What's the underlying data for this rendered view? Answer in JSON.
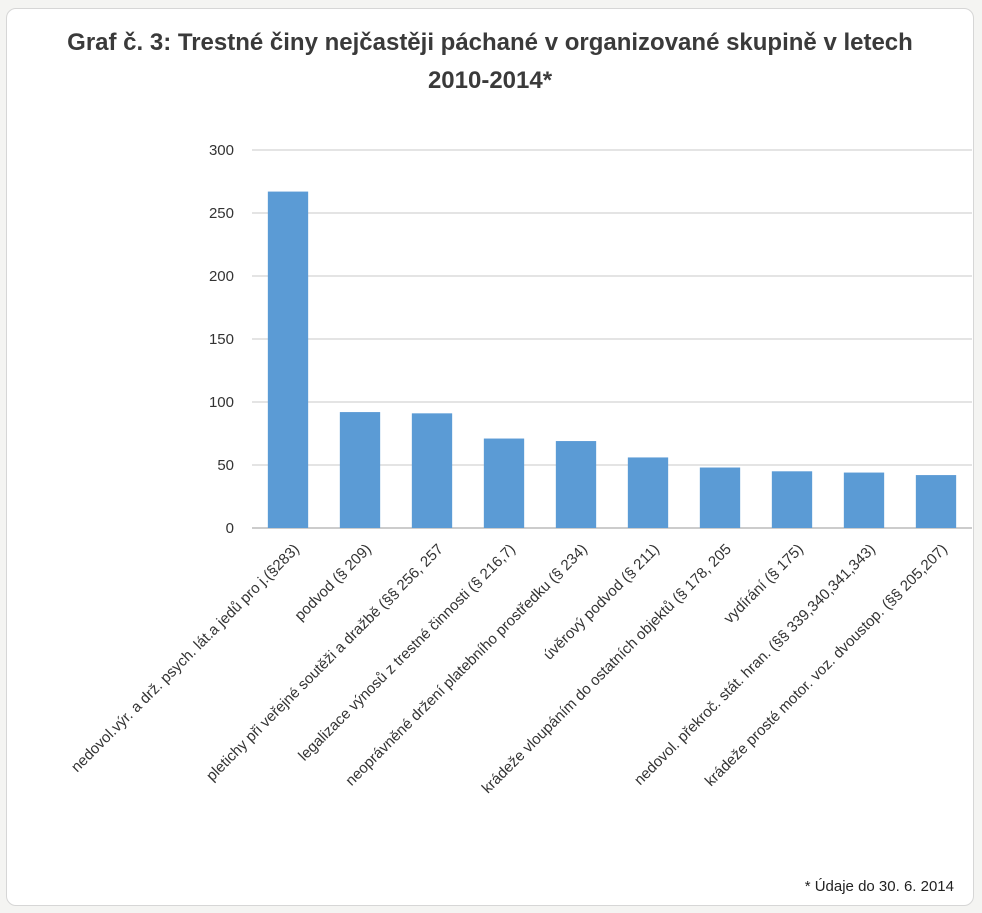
{
  "chart_data": {
    "type": "bar",
    "title": "Graf č. 3: Trestné činy nejčastěji páchané v organizované skupině v letech 2010-2014*",
    "categories": [
      "nedovol.výr. a drž. psych. lát.a jedů pro j.(§283)",
      "podvod (§ 209)",
      "pletichy při veřejné soutěži a dražbě (§§ 256, 257",
      "legalizace výnosů z trestné činnosti (§ 216,7)",
      "neoprávněné držení platebního prostředku (§ 234)",
      "úvěrový podvod (§ 211)",
      "krádeže vloupáním do ostatních objektů (§ 178, 205",
      "vydírání (§ 175)",
      "nedovol. překroč. stát. hran. (§§ 339,340,341,343)",
      "krádeže prosté motor. voz. dvoustop. (§§ 205,207)"
    ],
    "values": [
      267,
      92,
      91,
      71,
      69,
      56,
      48,
      45,
      44,
      42
    ],
    "ylim": [
      0,
      300
    ],
    "yticks": [
      0,
      50,
      100,
      150,
      200,
      250,
      300
    ],
    "grid": true,
    "bar_color": "#5b9bd5",
    "footnote": "* Údaje do 30. 6. 2014"
  }
}
